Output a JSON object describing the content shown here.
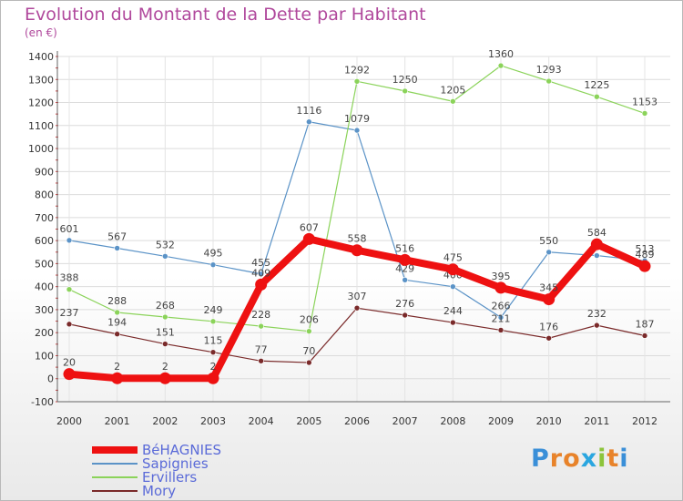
{
  "title": "Evolution du Montant de la Dette par Habitant",
  "subtitle": "(en €)",
  "logo": {
    "letters": [
      "P",
      "r",
      "o",
      "x",
      "i",
      "t",
      "i"
    ],
    "colors": [
      "#3a8fd8",
      "#e8832a",
      "#e8832a",
      "#2aa6e0",
      "#8cc43a",
      "#e8832a",
      "#3a8fd8"
    ]
  },
  "chart_data": {
    "type": "line",
    "x": [
      "2000",
      "2001",
      "2002",
      "2003",
      "2004",
      "2005",
      "2006",
      "2007",
      "2008",
      "2009",
      "2010",
      "2011",
      "2012"
    ],
    "ylim": [
      -100,
      1400
    ],
    "yticks": [
      "-100",
      "0",
      "100",
      "200",
      "300",
      "400",
      "500",
      "600",
      "700",
      "800",
      "900",
      "1000",
      "1100",
      "1200",
      "1300",
      "1400"
    ],
    "grid": true,
    "legend_position": "bottom-left",
    "series": [
      {
        "name": "BéHAGNIES",
        "color": "#ee1111",
        "width": 8,
        "values": [
          20,
          2,
          2,
          2,
          409,
          607,
          558,
          516,
          475,
          395,
          345,
          584,
          489
        ],
        "labels": [
          "20",
          "2",
          "2",
          "2",
          "409",
          "607",
          "558",
          "516",
          "475",
          "395",
          "345",
          "584",
          "489"
        ]
      },
      {
        "name": "Sapignies",
        "color": "#5b93c7",
        "width": 1.2,
        "values": [
          601,
          567,
          532,
          495,
          455,
          1116,
          1079,
          429,
          400,
          266,
          550,
          535,
          513
        ],
        "labels": [
          "601",
          "567",
          "532",
          "495",
          "455",
          "1116",
          "1079",
          "429",
          "400",
          "266",
          "550",
          "",
          "513"
        ]
      },
      {
        "name": "Ervillers",
        "color": "#8bd35a",
        "width": 1.2,
        "values": [
          388,
          288,
          268,
          249,
          228,
          206,
          1292,
          1250,
          1205,
          1360,
          1293,
          1225,
          1153
        ],
        "labels": [
          "388",
          "288",
          "268",
          "249",
          "228",
          "206",
          "1292",
          "1250",
          "1205",
          "1360",
          "1293",
          "1225",
          "1153"
        ]
      },
      {
        "name": "Mory",
        "color": "#7a2a2a",
        "width": 1.2,
        "values": [
          237,
          194,
          151,
          115,
          77,
          70,
          307,
          276,
          244,
          211,
          176,
          232,
          187
        ],
        "labels": [
          "237",
          "194",
          "151",
          "115",
          "77",
          "70",
          "307",
          "276",
          "244",
          "211",
          "176",
          "232",
          "187"
        ]
      }
    ]
  }
}
